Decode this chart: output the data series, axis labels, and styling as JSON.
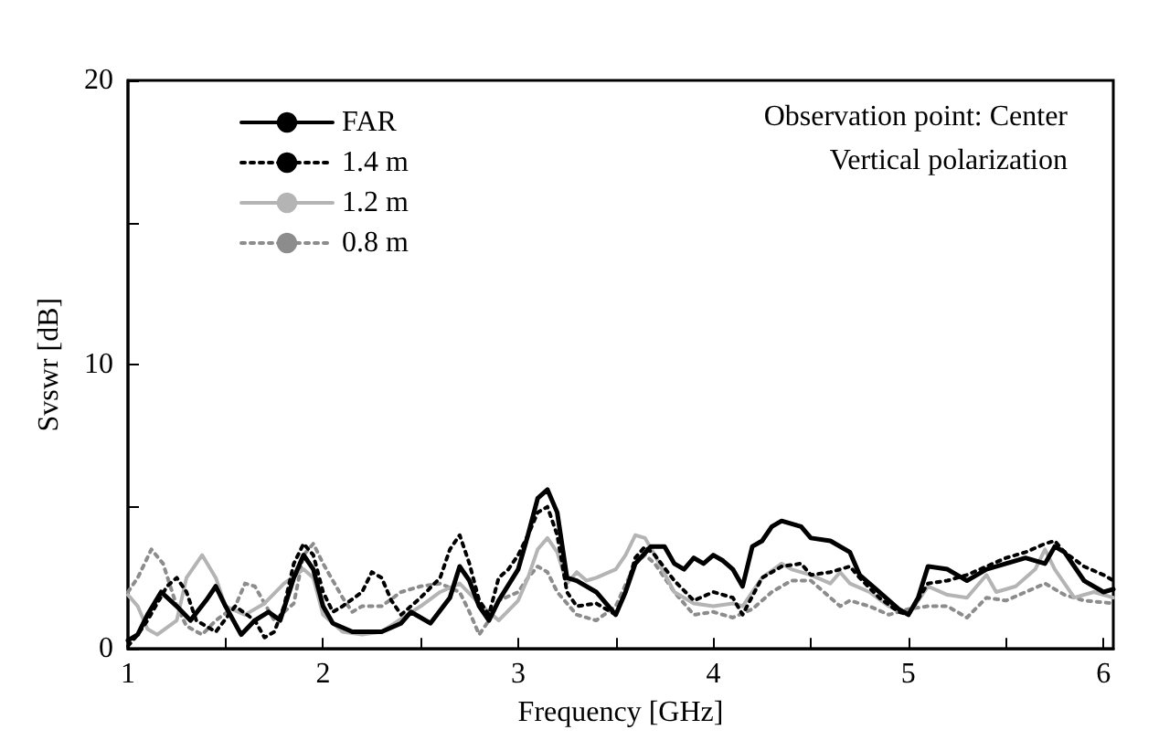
{
  "chart_data": {
    "type": "line",
    "xlabel": "Frequency [GHz]",
    "ylabel": "Svswr [dB]",
    "xlim": [
      1,
      6.05
    ],
    "ylim": [
      0,
      20
    ],
    "xticks": [
      1,
      {
        "value": 1.5,
        "label": null
      },
      2,
      {
        "value": 2.5,
        "label": null
      },
      3,
      {
        "value": 3.5,
        "label": null
      },
      4,
      {
        "value": 4.5,
        "label": null
      },
      5,
      {
        "value": 5.5,
        "label": null
      },
      6
    ],
    "yticks": [
      0,
      {
        "value": 5,
        "label": null
      },
      10,
      {
        "value": 15,
        "label": null
      },
      20
    ],
    "grid": false,
    "legend": "top left",
    "marker": "none",
    "annotations": [
      "Observation point: Center",
      "Vertical polarization"
    ],
    "series": [
      {
        "name": "FAR",
        "color": "#000000",
        "line_style": "solid",
        "x": [
          1.0,
          1.05,
          1.1,
          1.17,
          1.25,
          1.32,
          1.4,
          1.45,
          1.5,
          1.58,
          1.65,
          1.72,
          1.78,
          1.85,
          1.9,
          1.95,
          2.0,
          2.05,
          2.15,
          2.3,
          2.4,
          2.45,
          2.55,
          2.65,
          2.7,
          2.75,
          2.8,
          2.85,
          2.9,
          3.0,
          3.05,
          3.1,
          3.15,
          3.2,
          3.25,
          3.3,
          3.4,
          3.5,
          3.55,
          3.6,
          3.68,
          3.75,
          3.8,
          3.85,
          3.9,
          3.95,
          4.0,
          4.05,
          4.1,
          4.15,
          4.2,
          4.25,
          4.3,
          4.35,
          4.45,
          4.5,
          4.6,
          4.7,
          4.75,
          4.85,
          4.95,
          5.0,
          5.05,
          5.1,
          5.2,
          5.3,
          5.4,
          5.5,
          5.6,
          5.7,
          5.75,
          5.8,
          5.9,
          6.0,
          6.05
        ],
        "values": [
          0.3,
          0.5,
          1.2,
          2.0,
          1.5,
          1.0,
          1.7,
          2.2,
          1.5,
          0.5,
          1.0,
          1.3,
          1.0,
          2.5,
          3.3,
          2.8,
          1.5,
          0.9,
          0.6,
          0.6,
          0.9,
          1.3,
          0.9,
          1.8,
          2.9,
          2.4,
          1.5,
          1.0,
          1.7,
          2.8,
          4.0,
          5.3,
          5.6,
          4.8,
          2.5,
          2.4,
          2.0,
          1.2,
          2.0,
          3.0,
          3.6,
          3.6,
          3.0,
          2.8,
          3.2,
          3.0,
          3.3,
          3.1,
          2.8,
          2.2,
          3.6,
          3.8,
          4.3,
          4.5,
          4.3,
          3.9,
          3.8,
          3.4,
          2.6,
          2.0,
          1.4,
          1.2,
          1.8,
          2.9,
          2.8,
          2.4,
          2.8,
          3.0,
          3.2,
          3.0,
          3.6,
          3.4,
          2.4,
          2.0,
          2.1
        ]
      },
      {
        "name": "1.4 m",
        "color": "#000000",
        "line_style": "dotted",
        "x": [
          1.0,
          1.05,
          1.1,
          1.2,
          1.25,
          1.3,
          1.35,
          1.45,
          1.55,
          1.65,
          1.7,
          1.75,
          1.8,
          1.85,
          1.9,
          1.95,
          2.0,
          2.05,
          2.1,
          2.2,
          2.25,
          2.3,
          2.35,
          2.4,
          2.5,
          2.6,
          2.65,
          2.7,
          2.75,
          2.8,
          2.85,
          2.9,
          2.95,
          3.0,
          3.05,
          3.1,
          3.15,
          3.2,
          3.25,
          3.3,
          3.4,
          3.5,
          3.55,
          3.6,
          3.65,
          3.7,
          3.8,
          3.9,
          4.0,
          4.1,
          4.15,
          4.25,
          4.35,
          4.45,
          4.5,
          4.6,
          4.7,
          4.75,
          4.85,
          4.95,
          5.0,
          5.1,
          5.2,
          5.3,
          5.4,
          5.5,
          5.6,
          5.7,
          5.75,
          5.8,
          5.9,
          6.0,
          6.05
        ],
        "values": [
          0.1,
          0.5,
          1.0,
          2.2,
          2.5,
          2.0,
          1.0,
          0.6,
          1.5,
          1.0,
          0.4,
          0.6,
          1.5,
          3.0,
          3.7,
          3.3,
          2.0,
          1.3,
          1.5,
          2.0,
          2.7,
          2.5,
          1.7,
          1.2,
          1.8,
          2.5,
          3.5,
          4.0,
          3.0,
          1.7,
          1.2,
          2.5,
          2.8,
          3.3,
          4.0,
          4.8,
          5.0,
          4.0,
          2.0,
          1.5,
          1.6,
          1.2,
          2.0,
          3.2,
          3.6,
          3.3,
          2.4,
          1.7,
          2.0,
          1.8,
          1.2,
          2.5,
          2.9,
          3.0,
          2.6,
          2.7,
          2.9,
          2.5,
          1.8,
          1.3,
          1.2,
          2.3,
          2.4,
          2.6,
          2.9,
          3.2,
          3.4,
          3.7,
          3.8,
          3.4,
          2.9,
          2.6,
          2.4
        ]
      },
      {
        "name": "1.2 m",
        "color": "#b4b4b4",
        "line_style": "solid",
        "x": [
          1.0,
          1.05,
          1.1,
          1.15,
          1.25,
          1.3,
          1.38,
          1.45,
          1.5,
          1.6,
          1.7,
          1.8,
          1.9,
          1.95,
          2.0,
          2.1,
          2.2,
          2.3,
          2.5,
          2.6,
          2.7,
          2.8,
          2.9,
          3.0,
          3.05,
          3.1,
          3.15,
          3.2,
          3.25,
          3.3,
          3.35,
          3.4,
          3.5,
          3.55,
          3.6,
          3.65,
          3.7,
          3.8,
          3.9,
          4.0,
          4.1,
          4.15,
          4.25,
          4.35,
          4.4,
          4.5,
          4.6,
          4.65,
          4.7,
          4.8,
          4.9,
          5.0,
          5.1,
          5.2,
          5.3,
          5.4,
          5.45,
          5.55,
          5.65,
          5.7,
          5.75,
          5.85,
          5.95,
          6.05
        ],
        "values": [
          1.9,
          1.5,
          0.7,
          0.5,
          1.0,
          2.5,
          3.3,
          2.5,
          1.5,
          1.2,
          1.6,
          2.3,
          2.8,
          2.5,
          1.2,
          0.6,
          0.5,
          0.6,
          1.5,
          2.0,
          2.3,
          1.6,
          1.0,
          1.7,
          2.5,
          3.5,
          3.9,
          3.4,
          2.3,
          2.7,
          2.4,
          2.5,
          2.8,
          3.3,
          4.0,
          3.9,
          3.3,
          2.0,
          1.6,
          1.5,
          1.6,
          1.5,
          2.5,
          3.0,
          2.8,
          2.6,
          2.3,
          2.7,
          2.3,
          2.0,
          1.5,
          1.2,
          2.2,
          1.9,
          1.8,
          2.6,
          2.0,
          2.2,
          2.8,
          3.5,
          2.8,
          1.8,
          2.0,
          1.8
        ]
      },
      {
        "name": "0.8 m",
        "color": "#8c8c8c",
        "line_style": "dotted",
        "x": [
          1.0,
          1.05,
          1.12,
          1.18,
          1.25,
          1.3,
          1.38,
          1.45,
          1.55,
          1.6,
          1.65,
          1.75,
          1.85,
          1.9,
          1.95,
          2.0,
          2.1,
          2.15,
          2.2,
          2.3,
          2.4,
          2.5,
          2.6,
          2.7,
          2.75,
          2.8,
          2.85,
          2.9,
          3.0,
          3.05,
          3.1,
          3.15,
          3.2,
          3.3,
          3.4,
          3.5,
          3.6,
          3.65,
          3.7,
          3.8,
          3.9,
          4.0,
          4.1,
          4.2,
          4.3,
          4.4,
          4.5,
          4.6,
          4.65,
          4.7,
          4.8,
          4.9,
          5.0,
          5.1,
          5.2,
          5.3,
          5.4,
          5.5,
          5.6,
          5.7,
          5.8,
          5.9,
          6.05
        ],
        "values": [
          2.0,
          2.5,
          3.5,
          3.0,
          1.5,
          0.8,
          0.5,
          1.0,
          1.5,
          2.3,
          2.2,
          1.0,
          1.6,
          3.3,
          3.7,
          3.0,
          1.8,
          1.3,
          1.5,
          1.5,
          2.0,
          2.2,
          2.3,
          2.0,
          1.3,
          0.5,
          1.0,
          1.7,
          2.0,
          2.5,
          2.9,
          2.7,
          2.0,
          1.2,
          1.0,
          1.5,
          3.0,
          3.3,
          3.0,
          2.0,
          1.2,
          1.3,
          1.1,
          1.4,
          2.0,
          2.4,
          2.4,
          1.8,
          1.5,
          1.7,
          1.5,
          1.2,
          1.4,
          1.5,
          1.5,
          1.1,
          1.8,
          1.7,
          2.0,
          2.3,
          1.9,
          1.7,
          1.6
        ]
      }
    ]
  }
}
